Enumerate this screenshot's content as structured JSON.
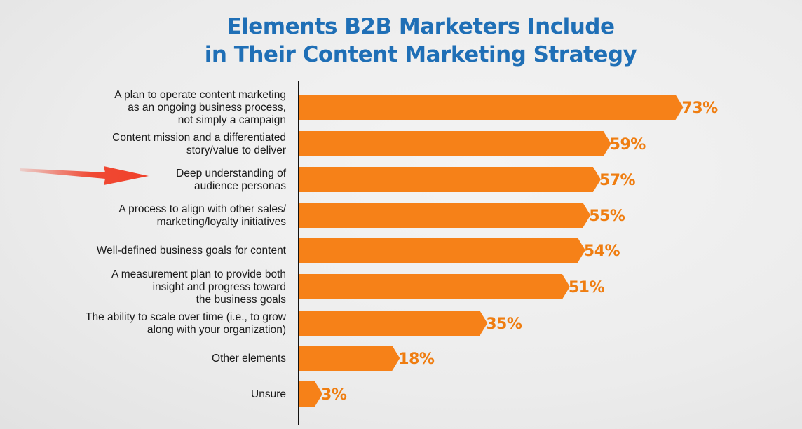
{
  "title": {
    "line1": "Elements B2B Marketers Include",
    "line2": "in Their Content Marketing Strategy"
  },
  "colors": {
    "bar": "#f68118",
    "value_text": "#ef7d10",
    "title": "#1f6fb6",
    "arrow": "#f0412a",
    "axis": "#111111"
  },
  "annotation": {
    "icon": "red-arrow-icon",
    "points_to": "Deep understanding of audience personas"
  },
  "chart_data": {
    "type": "bar",
    "orientation": "horizontal",
    "title": "Elements B2B Marketers Include in Their Content Marketing Strategy",
    "categories": [
      [
        "A plan to operate content marketing",
        "as an ongoing business process,",
        "not simply a campaign"
      ],
      [
        "Content mission and a differentiated",
        "story/value to deliver"
      ],
      [
        "Deep understanding of",
        "audience personas"
      ],
      [
        "A process to align with other sales/",
        "marketing/loyalty initiatives"
      ],
      [
        "Well-defined business goals for content"
      ],
      [
        "A measurement plan to provide both",
        "insight and progress toward",
        "the business goals"
      ],
      [
        "The ability to scale over time (i.e., to grow",
        "along with your organization)"
      ],
      [
        "Other elements"
      ],
      [
        "Unsure"
      ]
    ],
    "values": [
      73,
      59,
      57,
      55,
      54,
      51,
      35,
      18,
      3
    ],
    "value_labels": [
      "73%",
      "59%",
      "57%",
      "55%",
      "54%",
      "51%",
      "35%",
      "18%",
      "3%"
    ],
    "xlim": [
      0,
      100
    ],
    "grid": false,
    "legend": "none"
  }
}
